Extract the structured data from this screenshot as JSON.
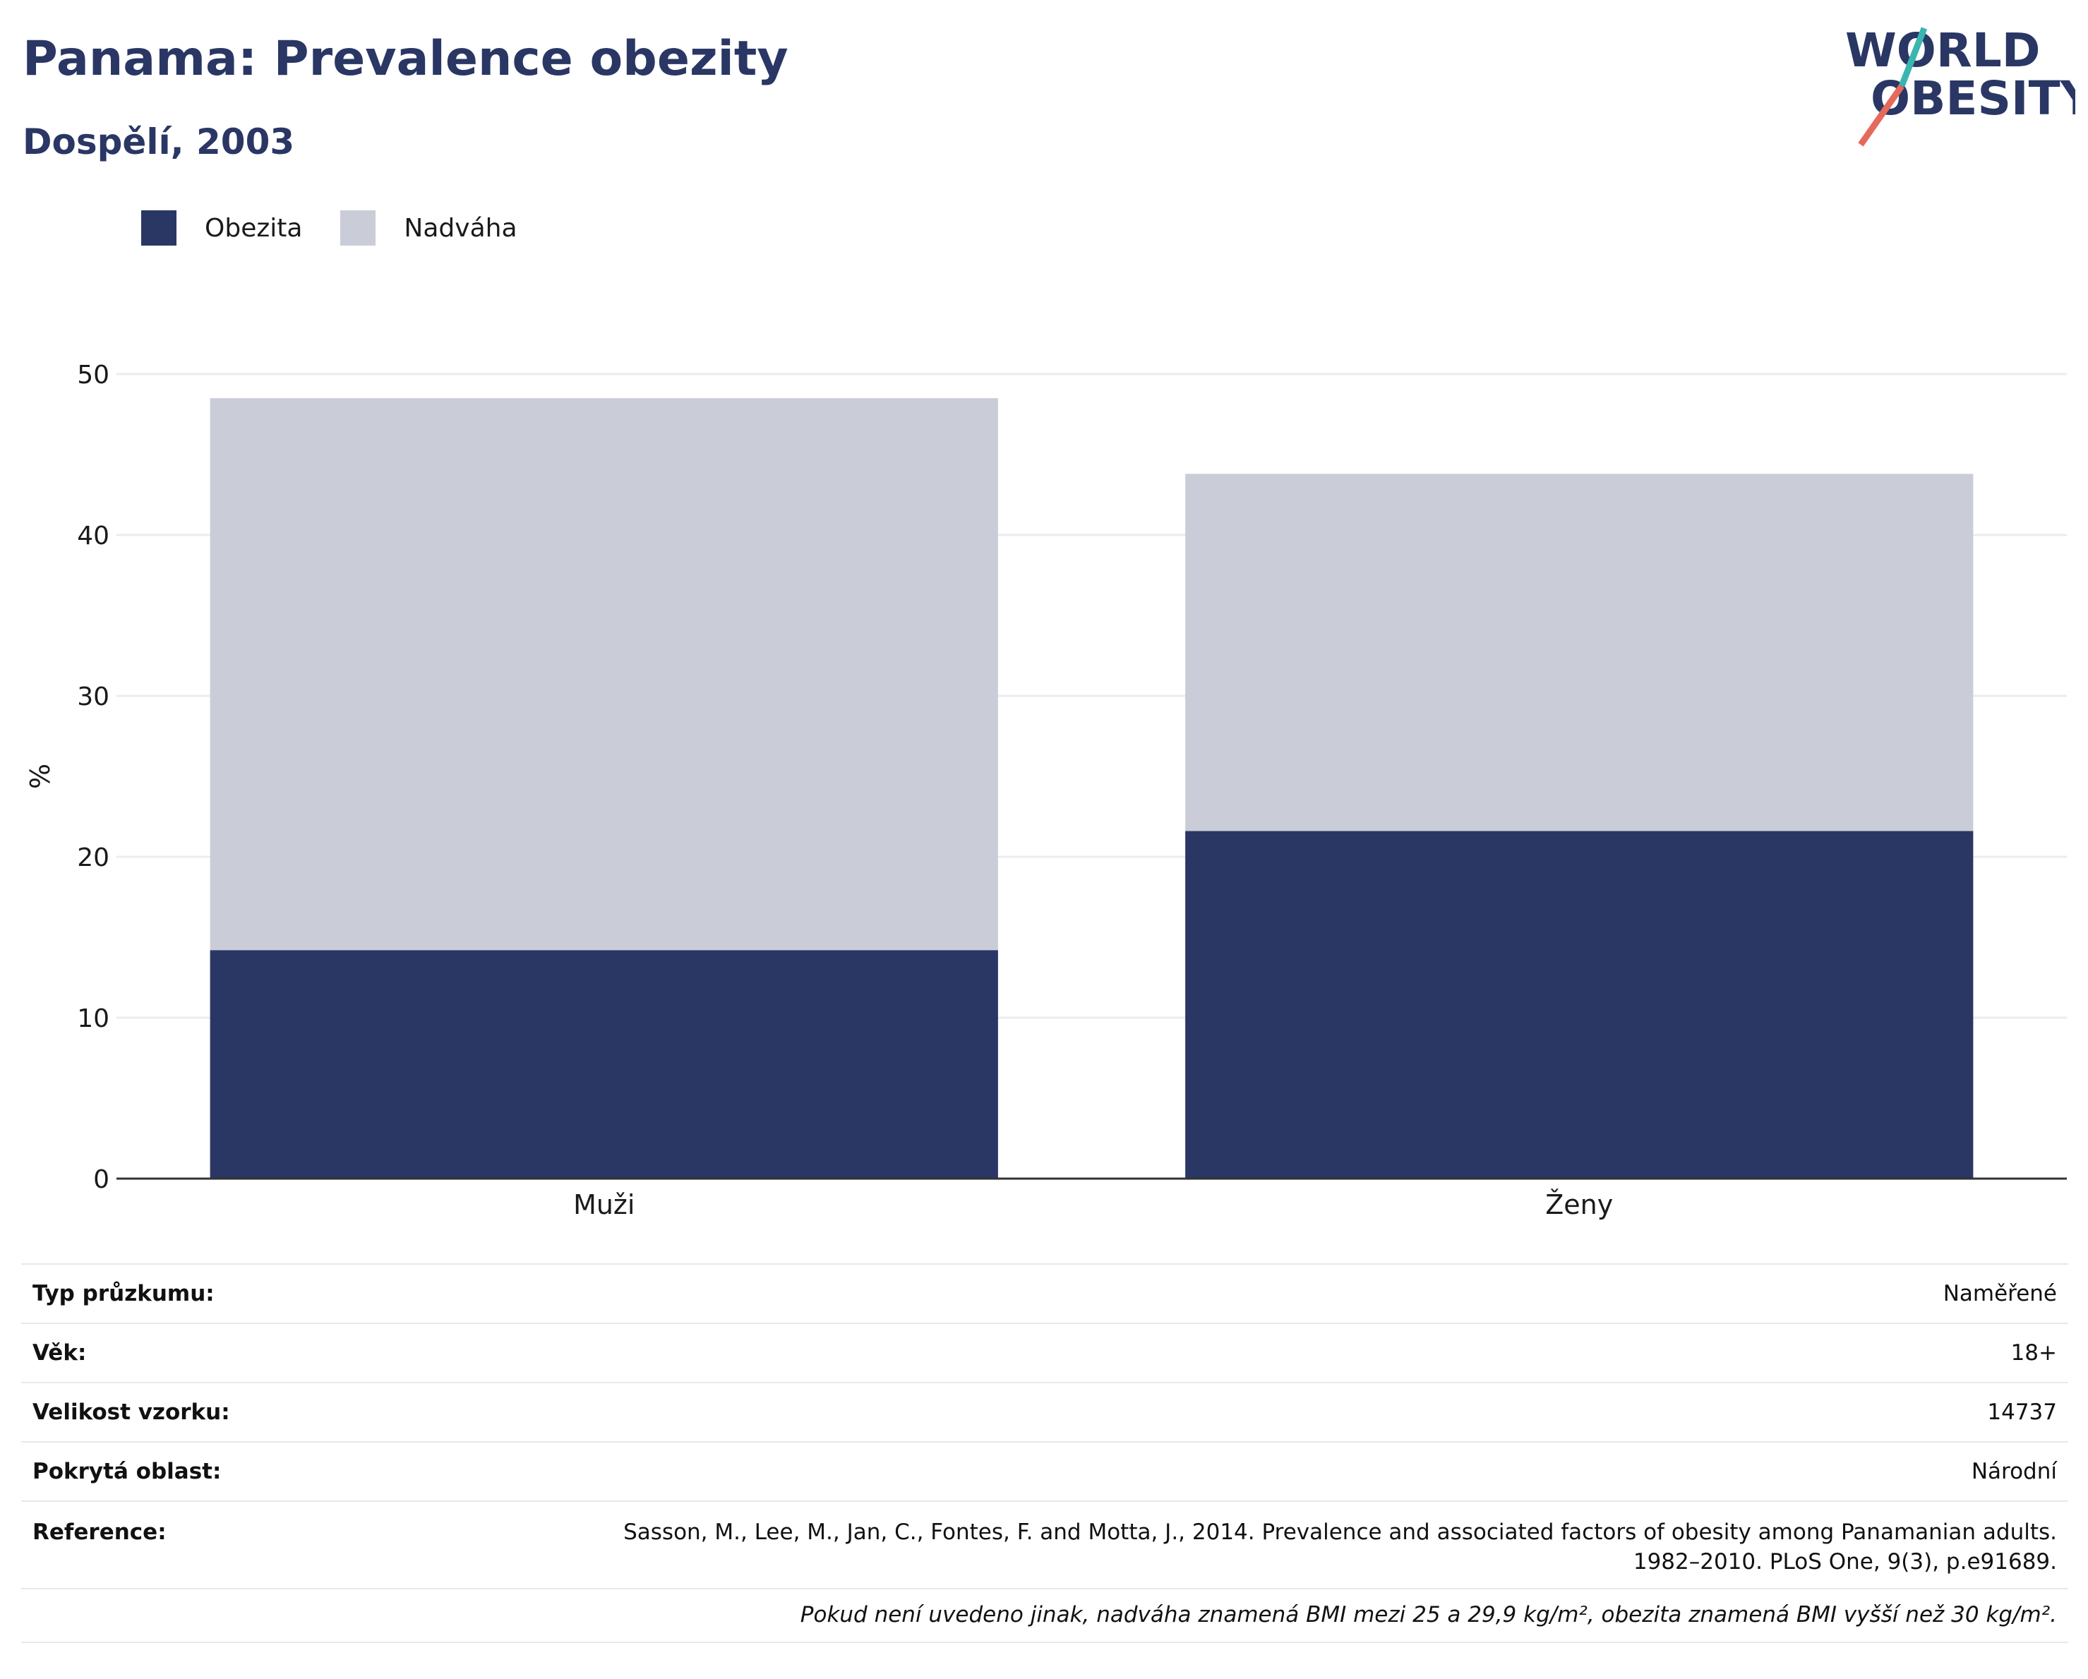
{
  "header": {
    "title": "Panama: Prevalence obezity",
    "subtitle": "Dospělí, 2003",
    "logo_line1": "WORLD",
    "logo_line2": "OBESITY"
  },
  "colors": {
    "obesity": "#2a3764",
    "overweight": "#cacdd8",
    "grid": "#ebebf0",
    "axis": "#333333",
    "logo_teal": "#3ab5b0",
    "logo_coral": "#e56a5b"
  },
  "legend": {
    "obesity_label": "Obezita",
    "overweight_label": "Nadváha"
  },
  "chart_data": {
    "type": "bar",
    "stacked": true,
    "categories": [
      "Muži",
      "Ženy"
    ],
    "series": [
      {
        "name": "Obezita",
        "values": [
          14.2,
          21.6
        ]
      },
      {
        "name": "Nadváha",
        "values": [
          34.3,
          22.2
        ]
      }
    ],
    "ylabel": "%",
    "yticks": [
      0,
      10,
      20,
      30,
      40,
      50
    ],
    "ylim": [
      0,
      50
    ],
    "grid": true,
    "legend_position": "top-left"
  },
  "metadata": {
    "rows": [
      {
        "label": "Typ průzkumu:",
        "value": "Naměřené"
      },
      {
        "label": "Věk:",
        "value": "18+"
      },
      {
        "label": "Velikost vzorku:",
        "value": "14737"
      },
      {
        "label": "Pokrytá oblast:",
        "value": "Národní"
      }
    ],
    "reference_label": "Reference:",
    "reference_line1": "Sasson, M., Lee, M., Jan, C., Fontes, F. and Motta, J., 2014. Prevalence and associated factors of obesity among Panamanian adults.",
    "reference_line2": "1982–2010. PLoS One, 9(3), p.e91689.",
    "note": "Pokud není uvedeno jinak, nadváha znamená BMI mezi 25 a 29,9 kg/m², obezita znamená BMI vyšší než 30 kg/m²."
  }
}
